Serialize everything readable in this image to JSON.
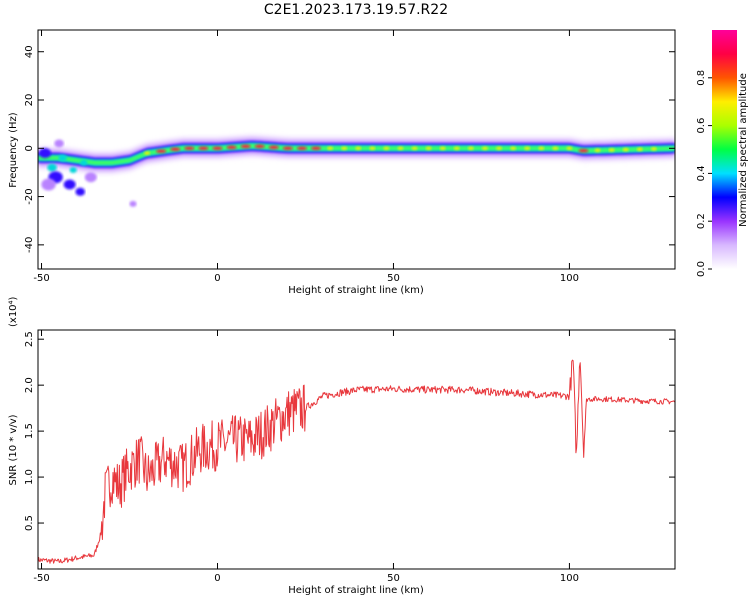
{
  "figure": {
    "title": "C2E1.2023.173.19.57.R22"
  },
  "chart_data": [
    {
      "type": "heatmap",
      "xlabel": "Height of straight line (km)",
      "ylabel": "Frequency (Hz)",
      "xlim": [
        -51,
        130
      ],
      "ylim": [
        -50,
        49
      ],
      "xticks": [
        "-50",
        "0",
        "50",
        "100"
      ],
      "yticks": [
        "-40",
        "-20",
        "0",
        "20",
        "40"
      ],
      "colorbar": {
        "label": "Normalized spectral amplitude",
        "range": [
          0.0,
          1.0
        ],
        "ticks": [
          "0.0",
          "0.2",
          "0.4",
          "0.6",
          "0.8"
        ],
        "colors": [
          "#ffffff",
          "#d8b8ff",
          "#9933ff",
          "#0000ff",
          "#00e0ff",
          "#00ff44",
          "#aaff00",
          "#ffee00",
          "#ff5500",
          "#ff0044",
          "#ff0099"
        ]
      },
      "ridge": {
        "x": [
          -51,
          -45,
          -40,
          -35,
          -30,
          -25,
          -20,
          -15,
          -10,
          -5,
          0,
          10,
          20,
          40,
          60,
          80,
          100,
          104,
          130
        ],
        "y": [
          -4,
          -4,
          -5,
          -6,
          -6,
          -5,
          -2,
          -1,
          0,
          0,
          0,
          1,
          0,
          0,
          0,
          0,
          0,
          -1,
          0
        ]
      }
    },
    {
      "type": "line",
      "xlabel": "Height of straight line (km)",
      "ylabel": "SNR (10 * v/v)",
      "y_multiplier": "(x10⁴)",
      "xlim": [
        -51,
        130
      ],
      "ylim": [
        0.0,
        2.6
      ],
      "xticks": [
        "-50",
        "0",
        "50",
        "100"
      ],
      "yticks": [
        "0.5",
        "1.0",
        "1.5",
        "2.0",
        "2.5"
      ],
      "color": "#e8383d",
      "x": [
        -51,
        -45,
        -40,
        -35,
        -33,
        -32,
        -30,
        -28,
        -25,
        -22,
        -20,
        -15,
        -10,
        -5,
        0,
        5,
        10,
        15,
        20,
        25,
        30,
        35,
        40,
        50,
        60,
        70,
        80,
        90,
        100,
        101,
        102,
        103,
        104,
        105,
        110,
        120,
        130
      ],
      "y": [
        0.1,
        0.08,
        0.12,
        0.15,
        0.4,
        0.8,
        1.0,
        0.9,
        1.1,
        1.2,
        1.0,
        1.2,
        1.1,
        1.3,
        1.35,
        1.4,
        1.4,
        1.55,
        1.7,
        1.75,
        1.88,
        1.92,
        1.95,
        1.96,
        1.95,
        1.95,
        1.92,
        1.9,
        1.88,
        2.3,
        1.2,
        2.4,
        1.3,
        1.85,
        1.85,
        1.83,
        1.82
      ]
    }
  ]
}
